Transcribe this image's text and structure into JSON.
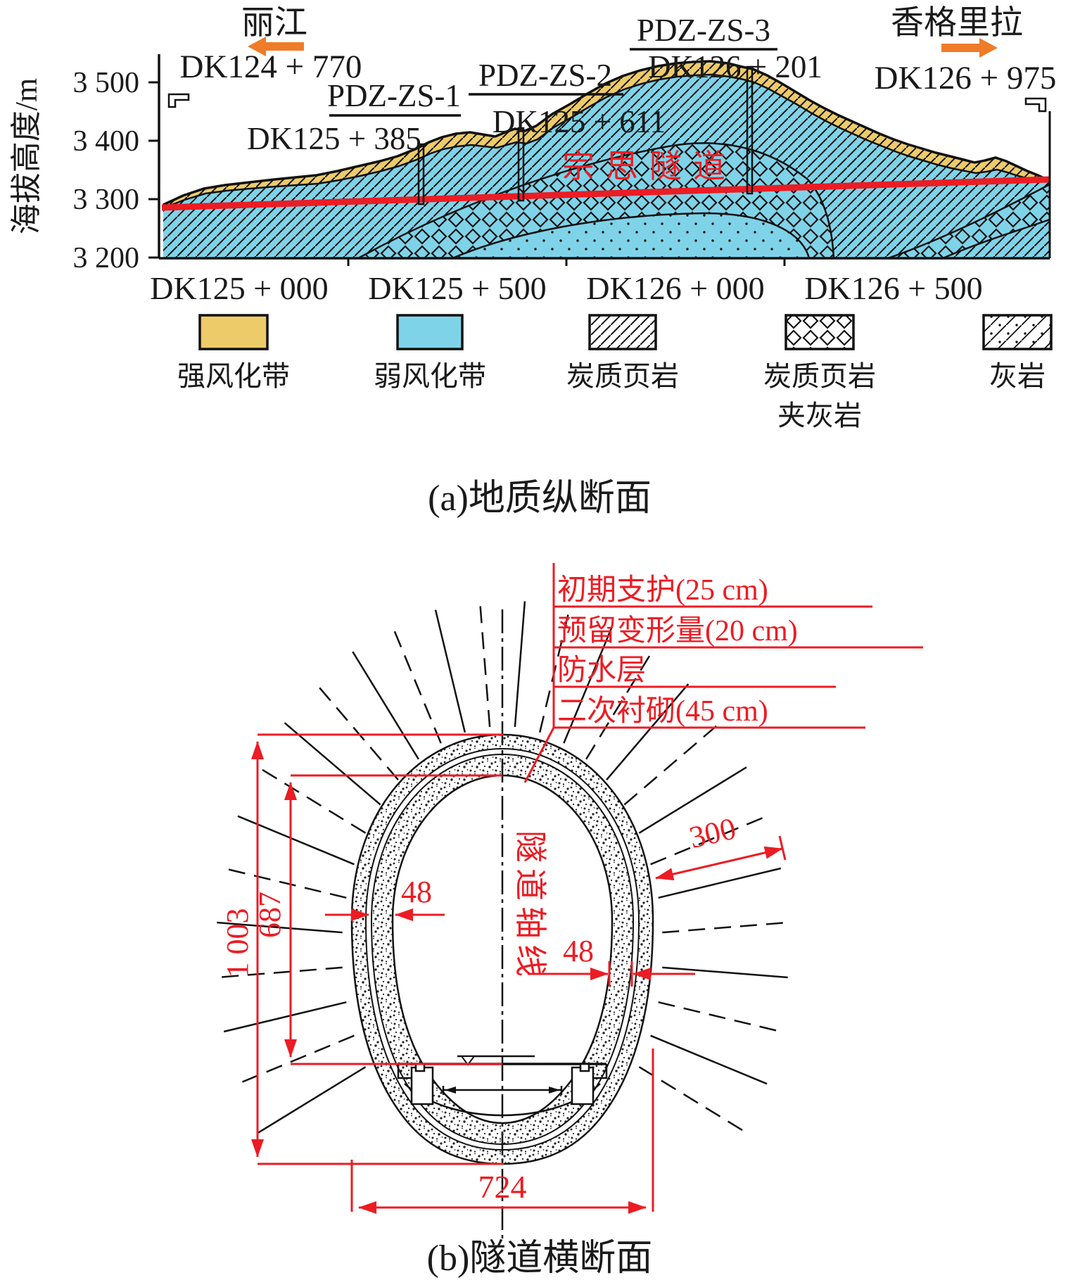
{
  "figure": {
    "caption_a": "(a)地质纵断面",
    "caption_b": "(b)隧道横断面"
  },
  "profile": {
    "y_axis_label": "海拔高度/m",
    "y_ticks": [
      "3 500",
      "3 400",
      "3 300",
      "3 200"
    ],
    "x_ticks": [
      "DK125 + 000",
      "DK125 + 500",
      "DK126 + 000",
      "DK126 + 500"
    ],
    "direction_left": "丽江",
    "direction_right": "香格里拉",
    "portal_left_chainage": "DK124 + 770",
    "portal_right_chainage": "DK126 + 975",
    "tunnel_name": "宗思隧道",
    "boreholes": [
      {
        "name": "PDZ-ZS-1",
        "chainage": "DK125 + 385"
      },
      {
        "name": "PDZ-ZS-2",
        "chainage": "DK125 + 611"
      },
      {
        "name": "PDZ-ZS-3",
        "chainage": "DK126 + 201"
      }
    ],
    "colors": {
      "strong_weathering": "#eecb69",
      "weak_weathering": "#7fd3e8",
      "tunnel_line": "#ec1c24",
      "direction_arrow": "#ee7c28"
    }
  },
  "legend": {
    "items": [
      {
        "label": "强风化带",
        "label2": ""
      },
      {
        "label": "弱风化带",
        "label2": ""
      },
      {
        "label": "炭质页岩",
        "label2": ""
      },
      {
        "label": "炭质页岩",
        "label2": "夹灰岩"
      },
      {
        "label": "灰岩",
        "label2": ""
      }
    ]
  },
  "cross_section": {
    "callouts": [
      "初期支护(25 cm)",
      "预留变形量(20 cm)",
      "防水层",
      "二次衬砌(45 cm)"
    ],
    "axis_label": "隧道轴线",
    "dimensions": {
      "total_height": "1 003",
      "height_to_rail": "687",
      "width": "724",
      "lining_left": "48",
      "lining_right": "48",
      "bolt_length": "300"
    }
  }
}
